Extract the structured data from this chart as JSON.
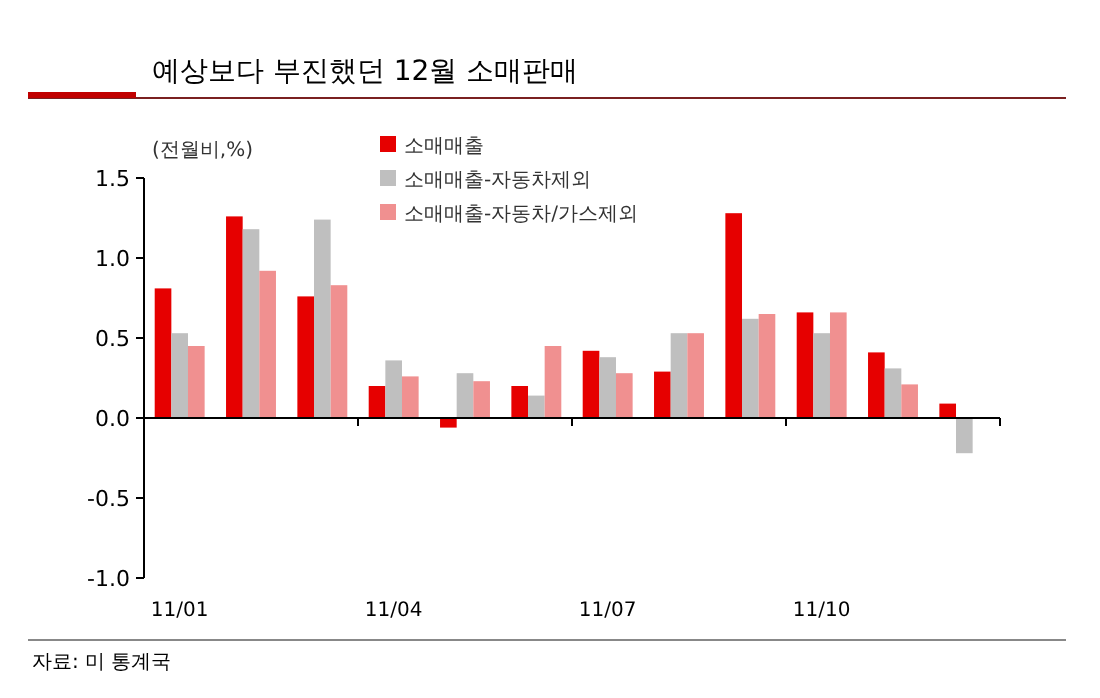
{
  "chart_data": {
    "type": "bar",
    "title": "예상보다 부진했던 12월 소매판매",
    "ylabel": "(전월비,%)",
    "categories": [
      "11/01",
      null,
      null,
      "11/04",
      null,
      null,
      "11/07",
      null,
      null,
      "11/10",
      null,
      null
    ],
    "series": [
      {
        "name": "소매매출",
        "color": "#e60000",
        "values": [
          0.81,
          1.26,
          0.76,
          0.2,
          -0.06,
          0.2,
          0.42,
          0.29,
          1.28,
          0.66,
          0.41,
          0.09
        ]
      },
      {
        "name": "소매매출-자동차제외",
        "color": "#bfbfbf",
        "values": [
          0.53,
          1.18,
          1.24,
          0.36,
          0.28,
          0.14,
          0.38,
          0.53,
          0.62,
          0.53,
          0.31,
          -0.22
        ]
      },
      {
        "name": "소매매출-자동차/가스제외",
        "color": "#f09090",
        "values": [
          0.45,
          0.92,
          0.83,
          0.26,
          0.23,
          0.45,
          0.28,
          0.53,
          0.65,
          0.66,
          0.21,
          null
        ]
      }
    ],
    "ylim": [
      -1.0,
      1.5
    ],
    "yticks": [
      {
        "value": -1.0,
        "label": "-1.0"
      },
      {
        "value": -0.5,
        "label": "-0.5"
      },
      {
        "value": 0.0,
        "label": "0.0"
      },
      {
        "value": 0.5,
        "label": "0.5"
      },
      {
        "value": 1.0,
        "label": "1.0"
      },
      {
        "value": 1.5,
        "label": "1.5"
      }
    ],
    "legend": "top",
    "annotations": [
      "자료: 미 통계국"
    ]
  }
}
